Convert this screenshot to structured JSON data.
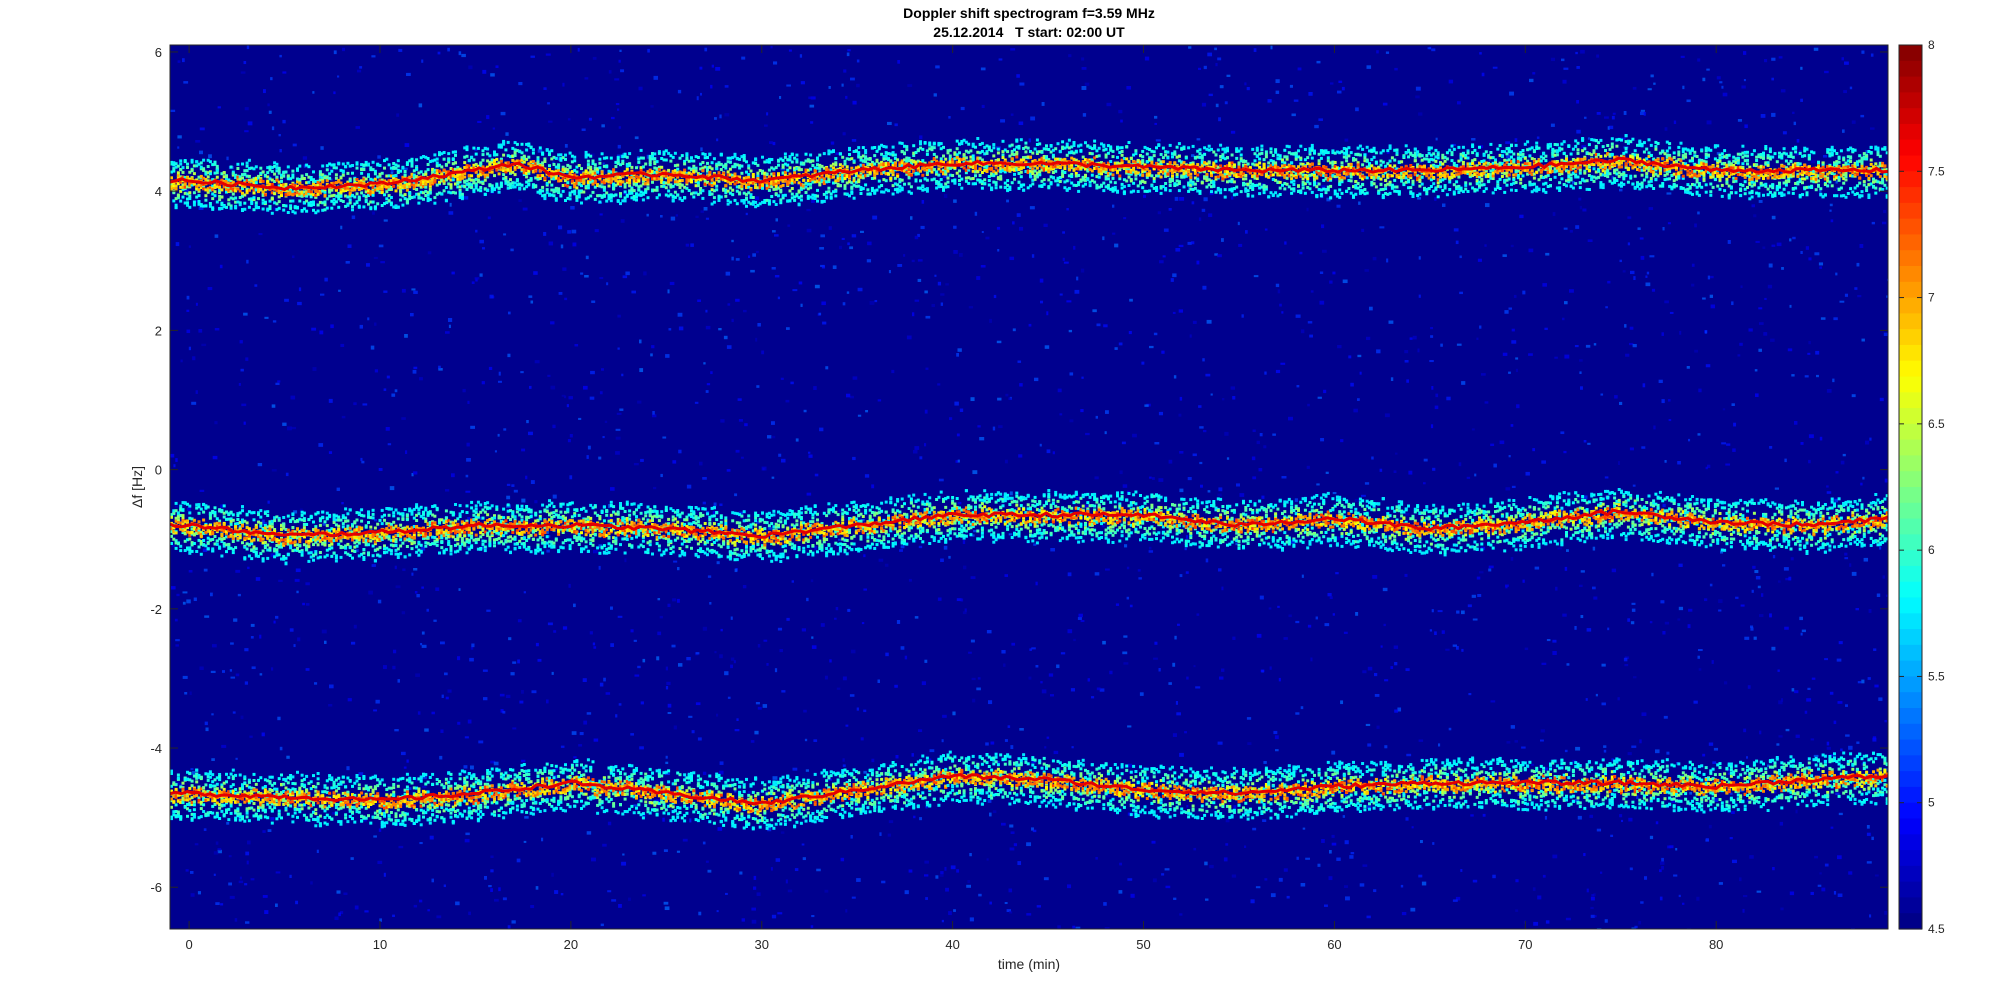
{
  "chart_data": {
    "type": "heatmap",
    "title": "Doppler shift spectrogram f=3.59 MHz",
    "subtitle": "25.12.2014   T start: 02:00 UT",
    "xlabel": "time (min)",
    "ylabel": "Δf [Hz]",
    "xlim": [
      -1,
      89
    ],
    "ylim": [
      -6.6,
      6.1
    ],
    "x_ticks": [
      0,
      10,
      20,
      30,
      40,
      50,
      60,
      70,
      80
    ],
    "y_ticks": [
      6,
      4,
      2,
      0,
      -2,
      -4,
      -6
    ],
    "colorbar": {
      "clim": [
        4.5,
        8
      ],
      "ticks": [
        8,
        7.5,
        7,
        6.5,
        6,
        5.5,
        5,
        4.5
      ],
      "colormap": "jet",
      "levels": 56
    },
    "background_color": "#00008f",
    "series": [
      {
        "x": [
          0,
          5,
          10,
          15,
          17,
          20,
          25,
          30,
          35,
          40,
          45,
          50,
          55,
          60,
          65,
          70,
          75,
          80,
          85,
          89
        ],
        "y": [
          4.15,
          4.05,
          4.1,
          4.3,
          4.4,
          4.2,
          4.25,
          4.15,
          4.3,
          4.4,
          4.4,
          4.35,
          4.3,
          4.3,
          4.3,
          4.35,
          4.45,
          4.3,
          4.3,
          4.3
        ]
      },
      {
        "x": [
          0,
          5,
          10,
          15,
          20,
          25,
          30,
          35,
          40,
          45,
          50,
          55,
          60,
          65,
          70,
          75,
          80,
          85,
          89
        ],
        "y": [
          -0.8,
          -0.95,
          -0.9,
          -0.8,
          -0.8,
          -0.85,
          -0.95,
          -0.8,
          -0.65,
          -0.65,
          -0.65,
          -0.8,
          -0.7,
          -0.85,
          -0.75,
          -0.6,
          -0.75,
          -0.8,
          -0.7
        ]
      },
      {
        "x": [
          0,
          5,
          10,
          15,
          20,
          25,
          30,
          35,
          40,
          45,
          50,
          55,
          60,
          65,
          70,
          75,
          80,
          85,
          89
        ],
        "y": [
          -4.65,
          -4.7,
          -4.75,
          -4.65,
          -4.5,
          -4.65,
          -4.8,
          -4.6,
          -4.4,
          -4.45,
          -4.6,
          -4.65,
          -4.55,
          -4.5,
          -4.5,
          -4.5,
          -4.55,
          -4.45,
          -4.4
        ]
      }
    ]
  }
}
